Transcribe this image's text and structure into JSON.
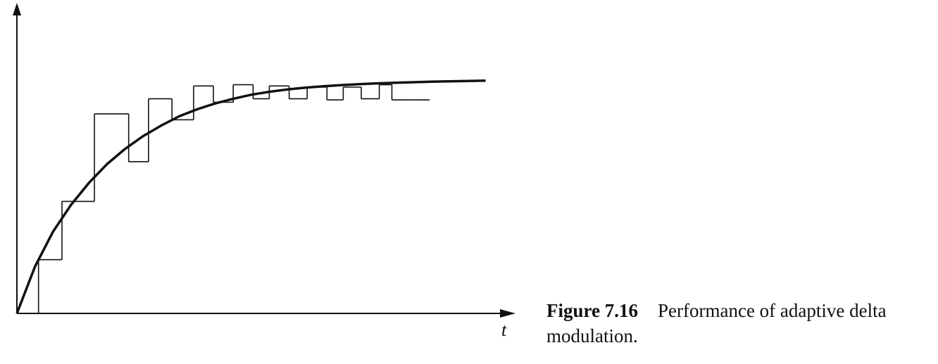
{
  "caption": {
    "number": "Figure 7.16",
    "text_line1": "Performance of adaptive delta",
    "text_line2": "modulation."
  },
  "axes": {
    "x_label": "t"
  },
  "chart_data": {
    "type": "line",
    "series": [
      {
        "kind": "smooth-curve",
        "x": [
          0,
          1,
          2,
          3,
          4,
          5,
          6,
          7,
          8,
          9,
          10,
          11,
          12,
          13,
          14,
          15,
          16,
          17,
          18,
          19,
          20,
          21,
          22,
          23,
          24,
          25,
          26
        ],
        "y": [
          0,
          4.0,
          7.0,
          9.3,
          11.2,
          12.8,
          14.1,
          15.2,
          16.1,
          16.9,
          17.5,
          18.0,
          18.4,
          18.75,
          19.0,
          19.2,
          19.35,
          19.47,
          19.57,
          19.65,
          19.72,
          19.77,
          19.82,
          19.86,
          19.9,
          19.93,
          19.96
        ]
      },
      {
        "kind": "staircase",
        "x": [
          0,
          1.2,
          2.5,
          4.3,
          6.2,
          7.3,
          8.6,
          9.8,
          10.9,
          12.0,
          13.1,
          14.0,
          15.1,
          16.1,
          17.2,
          18.1,
          19.1,
          20.1,
          20.8,
          21.8
        ],
        "y": [
          0,
          4.6,
          9.6,
          17.1,
          13.0,
          18.4,
          16.6,
          19.5,
          18.1,
          19.6,
          18.4,
          19.5,
          18.4,
          19.4,
          18.3,
          19.4,
          18.4,
          19.6,
          18.3,
          18.3
        ]
      }
    ]
  }
}
